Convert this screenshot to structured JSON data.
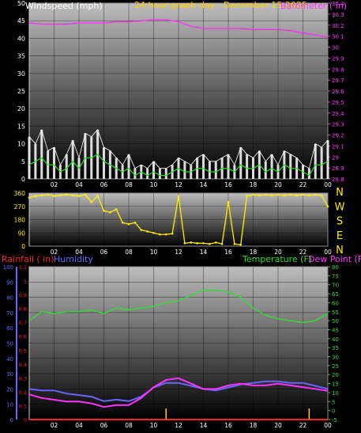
{
  "colors": {
    "windspeed": "#ffffff",
    "windgust": "#ffffff",
    "windavg": "#22dd22",
    "pressure": "#ff33ff",
    "direction": "#ffee00",
    "rainfall": "#ff2222",
    "humidity": "#6666ff",
    "temperature": "#33dd33",
    "dewpoint": "#ff33ff",
    "title": "#ffcc00",
    "axis_white": "#ffffff"
  },
  "chart_data": [
    {
      "type": "line",
      "title": "24 hour graph day : December 15 2025",
      "ylabel_left": "Windspeed (mph)",
      "ylabel_right": "Barometer ( in)",
      "x_ticks": [
        "02",
        "04",
        "06",
        "08",
        "10",
        "12",
        "14",
        "16",
        "18",
        "20",
        "22",
        "00"
      ],
      "y_left_ticks": [
        "0",
        "5",
        "10",
        "15",
        "20",
        "25",
        "30",
        "35",
        "40",
        "45",
        "50"
      ],
      "y_left_range": [
        0,
        50
      ],
      "y_right_ticks": [
        "28.8",
        "28.9",
        "29",
        "29.1",
        "29.2",
        "29.3",
        "29.4",
        "29.5",
        "29.6",
        "29.7",
        "29.8",
        "29.9",
        "30",
        "30.1",
        "30.2",
        "30.3",
        "30.4"
      ],
      "y_right_range": [
        28.8,
        30.4
      ],
      "series": [
        {
          "key": "pressure",
          "axis": "right",
          "x": [
            0,
            1,
            2,
            3,
            4,
            5,
            6,
            7,
            8,
            9,
            10,
            11,
            12,
            13,
            14,
            15,
            16,
            17,
            18,
            19,
            20,
            21,
            22,
            23,
            24
          ],
          "y": [
            30.22,
            30.21,
            30.21,
            30.21,
            30.22,
            30.22,
            30.22,
            30.23,
            30.23,
            30.24,
            30.25,
            30.25,
            30.23,
            30.19,
            30.17,
            30.17,
            30.17,
            30.17,
            30.16,
            30.16,
            30.16,
            30.15,
            30.13,
            30.11,
            30.09
          ]
        },
        {
          "key": "windgust",
          "axis": "left",
          "x": [
            0,
            0.5,
            1,
            1.5,
            2,
            2.5,
            3,
            3.5,
            4,
            4.5,
            5,
            5.5,
            6,
            6.5,
            7,
            7.5,
            8,
            8.5,
            9,
            9.5,
            10,
            10.5,
            11,
            11.5,
            12,
            12.5,
            13,
            13.5,
            14,
            14.5,
            15,
            15.5,
            16,
            16.5,
            17,
            17.5,
            18,
            18.5,
            19,
            19.5,
            20,
            20.5,
            21,
            21.5,
            22,
            22.5,
            23,
            23.5,
            24
          ],
          "y": [
            12,
            10,
            14,
            8,
            9,
            4,
            7,
            11,
            6,
            13,
            12,
            14,
            9,
            8,
            6,
            4,
            7,
            3,
            4,
            3,
            5,
            3,
            3,
            4,
            6,
            5,
            4,
            6,
            7,
            5,
            5,
            6,
            7,
            4,
            9,
            7,
            6,
            8,
            5,
            7,
            4,
            8,
            7,
            6,
            4,
            3,
            10,
            9,
            11
          ]
        },
        {
          "key": "windavg",
          "axis": "left",
          "x": [
            0,
            0.5,
            1,
            1.5,
            2,
            2.5,
            3,
            3.5,
            4,
            4.5,
            5,
            5.5,
            6,
            6.5,
            7,
            7.5,
            8,
            8.5,
            9,
            9.5,
            10,
            10.5,
            11,
            11.5,
            12,
            12.5,
            13,
            13.5,
            14,
            14.5,
            15,
            15.5,
            16,
            16.5,
            17,
            17.5,
            18,
            18.5,
            19,
            19.5,
            20,
            20.5,
            21,
            21.5,
            22,
            22.5,
            23,
            23.5,
            24
          ],
          "y": [
            4,
            5,
            6,
            4,
            4,
            2,
            3,
            5,
            3,
            6,
            6,
            7,
            5,
            4,
            3,
            2,
            3,
            1,
            2,
            1,
            2,
            1,
            1,
            2,
            3,
            2,
            2,
            3,
            3,
            2,
            2,
            3,
            3,
            2,
            4,
            3,
            3,
            4,
            2,
            3,
            2,
            4,
            3,
            3,
            2,
            1,
            4,
            4,
            5
          ]
        }
      ]
    },
    {
      "type": "scatter",
      "ylabel_right": "N W S E N",
      "compass_labels": [
        "N",
        "W",
        "S",
        "E",
        "N"
      ],
      "y_ticks": [
        "0",
        "90",
        "180",
        "270",
        "360"
      ],
      "y_range": [
        0,
        360
      ],
      "x_ticks": [
        "02",
        "04",
        "06",
        "08",
        "10",
        "12",
        "14",
        "16",
        "18",
        "20",
        "22",
        "00"
      ],
      "series": [
        {
          "key": "direction",
          "x": [
            0,
            0.5,
            1,
            1.5,
            2,
            2.5,
            3,
            3.5,
            4,
            4.5,
            5,
            5.5,
            6,
            6.5,
            7,
            7.5,
            8,
            8.5,
            9,
            9.5,
            10,
            10.5,
            11,
            11.5,
            12,
            12.5,
            13,
            13.5,
            14,
            14.5,
            15,
            15.5,
            16,
            16.5,
            17,
            17.5,
            18,
            18.5,
            19,
            19.5,
            20,
            20.5,
            21,
            21.5,
            22,
            22.5,
            23,
            23.5,
            24
          ],
          "y": [
            330,
            340,
            345,
            350,
            340,
            345,
            350,
            345,
            340,
            350,
            300,
            340,
            240,
            230,
            250,
            160,
            150,
            160,
            110,
            100,
            90,
            80,
            80,
            85,
            340,
            20,
            25,
            20,
            20,
            15,
            25,
            15,
            300,
            15,
            10,
            340,
            350,
            345,
            350,
            345,
            350,
            345,
            350,
            345,
            350,
            345,
            350,
            345,
            270
          ]
        }
      ]
    },
    {
      "type": "line",
      "ylabel_left_1": "Rainfall ( in)",
      "ylabel_left_2": "Humidity",
      "ylabel_right_1": "Temperature (F)",
      "ylabel_right_2": "Dew Point (F)",
      "humidity_ticks": [
        "0",
        "10",
        "20",
        "30",
        "40",
        "50",
        "60",
        "70",
        "80",
        "90",
        "100"
      ],
      "humidity_range": [
        0,
        100
      ],
      "rain_ticks": [
        "0",
        "0.1",
        "0.2",
        "0.3",
        "0.4",
        "0.5",
        "0.6",
        "0.7",
        "0.8",
        "0.9",
        "1",
        "1.1"
      ],
      "rain_range": [
        0,
        1.1
      ],
      "temp_ticks": [
        "-5",
        "0",
        "5",
        "10",
        "15",
        "20",
        "25",
        "30",
        "35",
        "40",
        "45",
        "50",
        "55",
        "60",
        "65",
        "70",
        "75",
        "80"
      ],
      "temp_range": [
        -5,
        80
      ],
      "x_ticks": [
        "02",
        "04",
        "06",
        "08",
        "10",
        "12",
        "14",
        "16",
        "18",
        "20",
        "22",
        "00"
      ],
      "series": [
        {
          "key": "temperature",
          "axis": "temp",
          "x": [
            0,
            1,
            2,
            3,
            4,
            5,
            6,
            7,
            8,
            9,
            10,
            11,
            12,
            13,
            14,
            15,
            16,
            17,
            18,
            19,
            20,
            21,
            22,
            23,
            24
          ],
          "y": [
            50,
            55,
            54,
            55,
            55,
            56,
            54,
            57,
            56,
            57,
            58,
            60,
            61,
            64,
            67,
            67,
            66,
            63,
            57,
            53,
            51,
            50,
            49,
            50,
            54
          ]
        },
        {
          "key": "humidity",
          "axis": "humidity",
          "x": [
            0,
            1,
            2,
            3,
            4,
            5,
            6,
            7,
            8,
            9,
            10,
            11,
            12,
            13,
            14,
            15,
            16,
            17,
            18,
            19,
            20,
            21,
            22,
            23,
            24
          ],
          "y": [
            20,
            19,
            19,
            17,
            16,
            15,
            12,
            13,
            12,
            15,
            21,
            24,
            24,
            22,
            20,
            19,
            21,
            23,
            24,
            25,
            25,
            24,
            24,
            22,
            20
          ]
        },
        {
          "key": "dewpoint",
          "axis": "temp",
          "x": [
            0,
            1,
            2,
            3,
            4,
            5,
            6,
            7,
            8,
            9,
            10,
            11,
            12,
            13,
            14,
            15,
            16,
            17,
            18,
            19,
            20,
            21,
            22,
            23,
            24
          ],
          "y": [
            9,
            7,
            6,
            5,
            5,
            4,
            2,
            3,
            3,
            7,
            13,
            17,
            18,
            15,
            12,
            12,
            14,
            15,
            14,
            14,
            15,
            14,
            13,
            12,
            11
          ]
        },
        {
          "key": "rainfall",
          "axis": "rain",
          "x": [
            0,
            24
          ],
          "y": [
            0,
            0
          ]
        }
      ],
      "rain_spikes": [
        {
          "x": 11.0,
          "y": 0.08
        },
        {
          "x": 22.5,
          "y": 0.08
        }
      ]
    }
  ]
}
